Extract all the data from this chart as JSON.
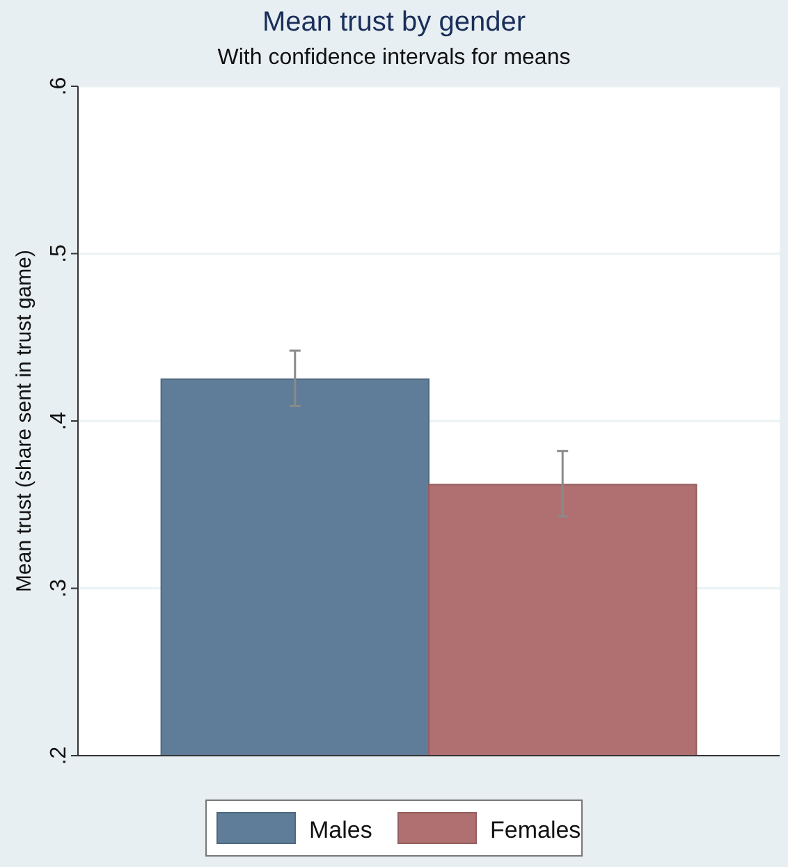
{
  "chart_data": {
    "type": "bar",
    "title": "Mean trust by gender",
    "subtitle": "With confidence intervals for means",
    "ylabel": "Mean trust (share sent in trust game)",
    "categories": [
      null
    ],
    "series": [
      {
        "name": "Males",
        "color": "#5f7d99",
        "values": [
          0.425
        ],
        "errors": [
          [
            0.409,
            0.442
          ]
        ]
      },
      {
        "name": "Females",
        "color": "#b07072",
        "values": [
          0.362
        ],
        "errors": [
          [
            0.343,
            0.382
          ]
        ]
      }
    ],
    "ylim": [
      0.2,
      0.6
    ],
    "yticks": [
      {
        "value": 0.2,
        "label": ".2"
      },
      {
        "value": 0.3,
        "label": ".3"
      },
      {
        "value": 0.4,
        "label": ".4"
      },
      {
        "value": 0.5,
        "label": ".5"
      },
      {
        "value": 0.6,
        "label": ".6"
      }
    ],
    "grid": "y",
    "legend": "bottom"
  }
}
